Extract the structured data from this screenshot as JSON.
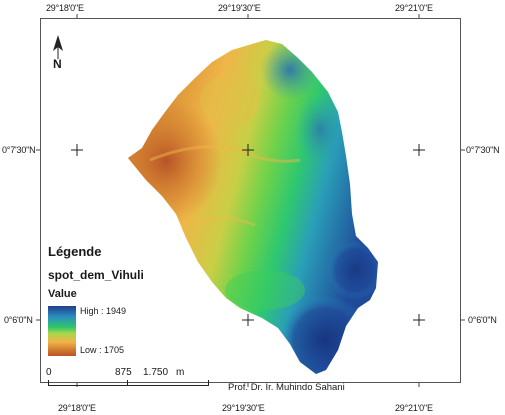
{
  "axes": {
    "top_ticks": [
      "29°18'0\"E",
      "29°19'30\"E",
      "29°21'0\"E"
    ],
    "bottom_ticks": [
      "29°18'0\"E",
      "29°19'30\"E",
      "29°21'0\"E"
    ],
    "left_ticks": [
      "0°7'30\"N",
      "0°6'0\"N"
    ],
    "right_ticks": [
      "0°7'30\"N",
      "0°6'0\"N"
    ]
  },
  "legend": {
    "title": "Légende",
    "layer": "spot_dem_Vihuli",
    "field": "Value",
    "high_label": "High : 1949",
    "low_label": "Low : 1705"
  },
  "scale": {
    "labels": [
      "0",
      "875",
      "1.750",
      "m"
    ]
  },
  "credit": "Prof. Dr. Ir. Muhindo Sahani",
  "north_arrow": {
    "label": "N",
    "icon": "north-arrow-icon"
  },
  "colors": {
    "high": "#1f3f8f",
    "mid": "#2ec46a",
    "low": "#b8552a",
    "frame": "#555555"
  },
  "elevation_range": {
    "min": 1705,
    "max": 1949
  }
}
